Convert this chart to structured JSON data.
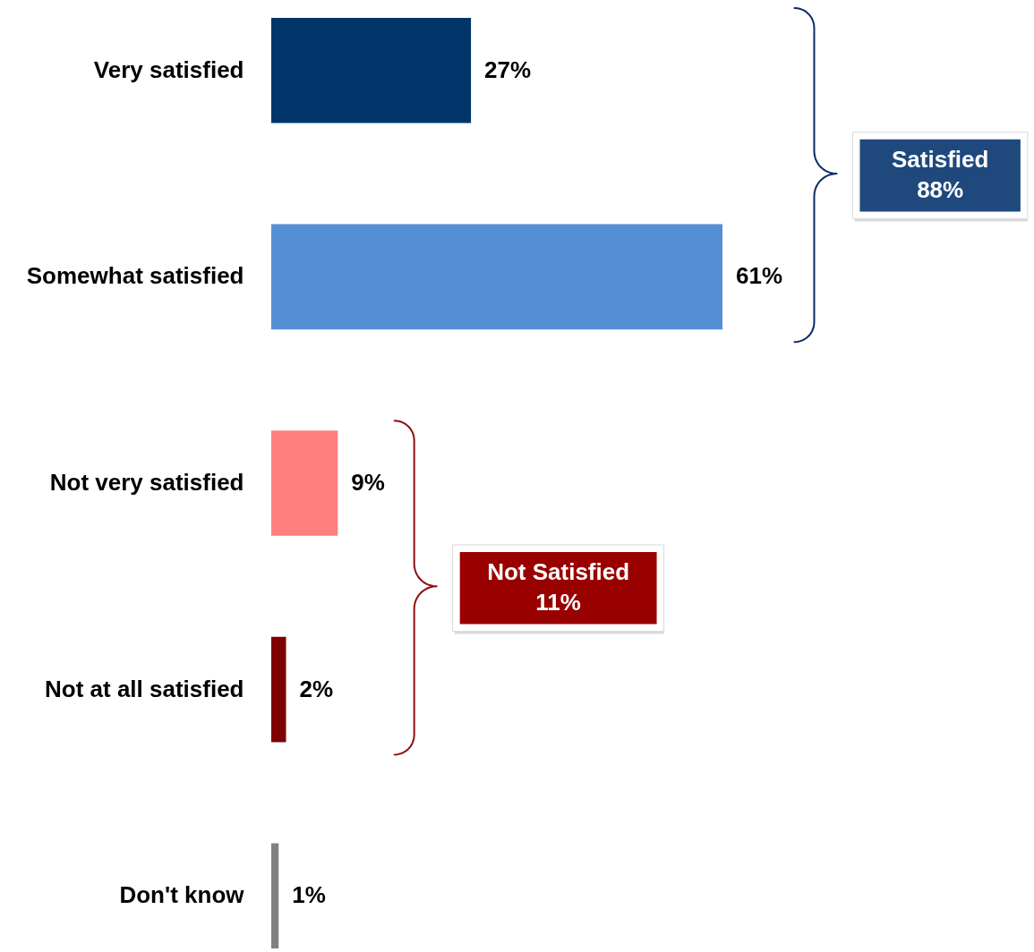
{
  "chart_data": {
    "type": "bar",
    "orientation": "horizontal",
    "categories": [
      "Very satisfied",
      "Somewhat satisfied",
      "Not very satisfied",
      "Not at all satisfied",
      "Don't know"
    ],
    "values": [
      27,
      61,
      9,
      2,
      1
    ],
    "colors": [
      "#02356a",
      "#558ed5",
      "#ff7f7f",
      "#7f0000",
      "#808080"
    ],
    "value_labels": [
      "27%",
      "61%",
      "9%",
      "2%",
      "1%"
    ],
    "annotations": [
      "Satisfied\n88%",
      "Not Satisfied\n11%"
    ]
  }
}
